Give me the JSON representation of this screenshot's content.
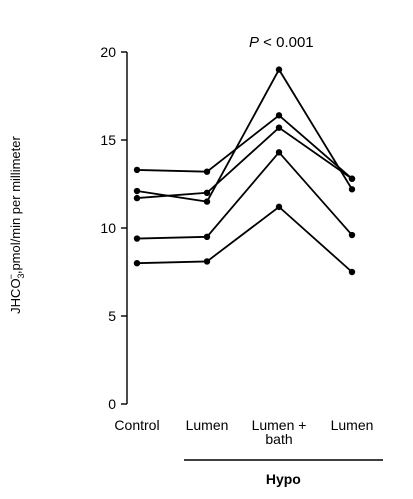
{
  "chart_data": {
    "type": "line",
    "categories": [
      [
        "Control"
      ],
      [
        "Lumen"
      ],
      [
        "Lumen +",
        "bath"
      ],
      [
        "Lumen"
      ]
    ],
    "series": [
      {
        "values": [
          13.3,
          13.2,
          16.4,
          12.8
        ]
      },
      {
        "values": [
          12.1,
          11.5,
          19.0,
          12.2
        ]
      },
      {
        "values": [
          11.7,
          12.0,
          15.7,
          12.8
        ]
      },
      {
        "values": [
          9.4,
          9.5,
          14.3,
          9.6
        ]
      },
      {
        "values": [
          8.0,
          8.1,
          11.2,
          7.5
        ]
      }
    ],
    "ylim": [
      0,
      20
    ],
    "yticks": [
      0,
      5,
      10,
      15,
      20
    ],
    "ylabel_parts": {
      "main": "JHCO",
      "subscript": "3",
      "superscript": "−",
      "rest": ",pmol/min per millimeter"
    },
    "annotation": {
      "text_italic": "P",
      "text_rest": " < 0.001"
    },
    "group_label": {
      "text": "Hypo",
      "spans_categories": [
        1,
        3
      ]
    },
    "grid": false,
    "legend": "none",
    "color": "#000000"
  }
}
